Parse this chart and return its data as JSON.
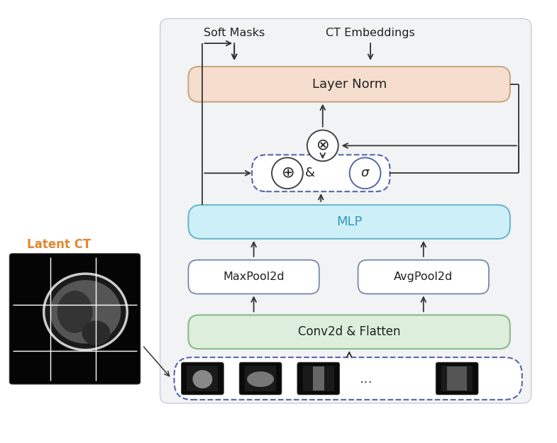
{
  "layer_norm_color": "#f5dece",
  "layer_norm_edge": "#c8a882",
  "mlp_color": "#cdf0f8",
  "mlp_edge": "#6ab8cc",
  "conv_color": "#ddeedd",
  "conv_edge": "#88bb88",
  "pool_color": "#ffffff",
  "pool_edge": "#7788aa",
  "dashed_color": "#5566aa",
  "arrow_color": "#333333",
  "text_color": "#222222",
  "latent_ct_color": "#e08830",
  "mlp_text_color": "#3399bb",
  "layer_norm_text": "Layer Norm",
  "mlp_text": "MLP",
  "conv_text": "Conv2d & Flatten",
  "maxpool_text": "MaxPool2d",
  "avgpool_text": "AvgPool2d",
  "soft_masks_text": "Soft Masks",
  "ct_embeddings_text": "CT Embeddings",
  "latent_ct_text": "Latent CT"
}
